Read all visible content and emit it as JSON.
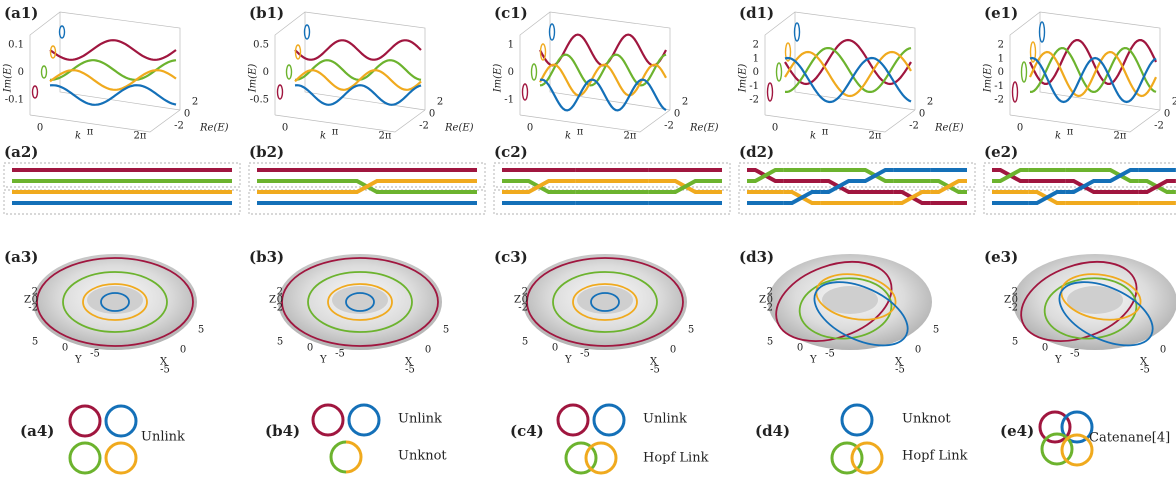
{
  "columns": [
    {
      "labels": [
        "(a1)",
        "(a2)",
        "(a3)",
        "(a4)"
      ],
      "im_ticks": [
        "0.1",
        "0",
        "-0.1"
      ],
      "links": [
        "Unlink"
      ]
    },
    {
      "labels": [
        "(b1)",
        "(b2)",
        "(b3)",
        "(b4)"
      ],
      "im_ticks": [
        "0.5",
        "0",
        "-0.5"
      ],
      "links": [
        "Unlink",
        "Unknot"
      ]
    },
    {
      "labels": [
        "(c1)",
        "(c2)",
        "(c3)",
        "(c4)"
      ],
      "im_ticks": [
        "1",
        "0",
        "-1"
      ],
      "links": [
        "Unlink",
        "Hopf Link"
      ]
    },
    {
      "labels": [
        "(d1)",
        "(d2)",
        "(d3)",
        "(d4)"
      ],
      "im_ticks": [
        "2",
        "1",
        "0",
        "-1",
        "-2"
      ],
      "links": [
        "Unknot",
        "Hopf Link"
      ]
    },
    {
      "labels": [
        "(e1)",
        "(e2)",
        "(e3)",
        "(e4)"
      ],
      "im_ticks": [
        "2",
        "1",
        "0",
        "-1",
        "-2"
      ],
      "links": [
        "Catenane[4]"
      ]
    }
  ],
  "axis": {
    "im": "Im(E)",
    "re": "Re(E)",
    "k": "k",
    "x": "X",
    "y": "Y",
    "z": "Z"
  },
  "k_ticks": [
    "0",
    "π",
    "2π"
  ],
  "re_ticks": [
    "2",
    "0",
    "-2"
  ],
  "z_ticks": [
    "2",
    "0",
    "-2"
  ],
  "xy_ticks": [
    "5",
    "0",
    "-5"
  ]
}
